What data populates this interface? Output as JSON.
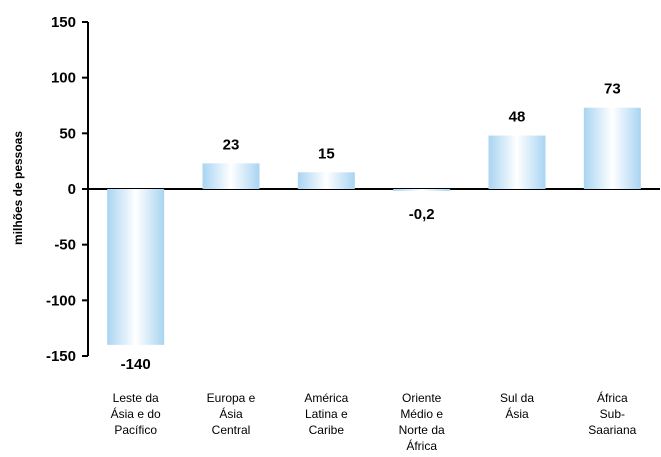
{
  "chart_data": {
    "type": "bar",
    "ylabel": "milhões de pessoas",
    "ylim": [
      -150,
      150
    ],
    "yticks": [
      "150",
      "100",
      "50",
      "0",
      "-50",
      "-100",
      "-150"
    ],
    "categories": [
      [
        "Leste da",
        "Ásia e do",
        "Pacífico"
      ],
      [
        "Europa e",
        "Ásia",
        "Central"
      ],
      [
        "América",
        "Latina e",
        "Caribe"
      ],
      [
        "Oriente",
        "Médio e",
        "Norte da",
        "África"
      ],
      [
        "Sul da",
        "Ásia"
      ],
      [
        "África",
        "Sub-",
        "Saariana"
      ]
    ],
    "values": [
      -140,
      23,
      15,
      -0.2,
      48,
      73
    ],
    "value_labels": [
      "-140",
      "23",
      "15",
      "-0,2",
      "48",
      "73"
    ],
    "bar_color": "#a9d4f2",
    "grid": false
  }
}
